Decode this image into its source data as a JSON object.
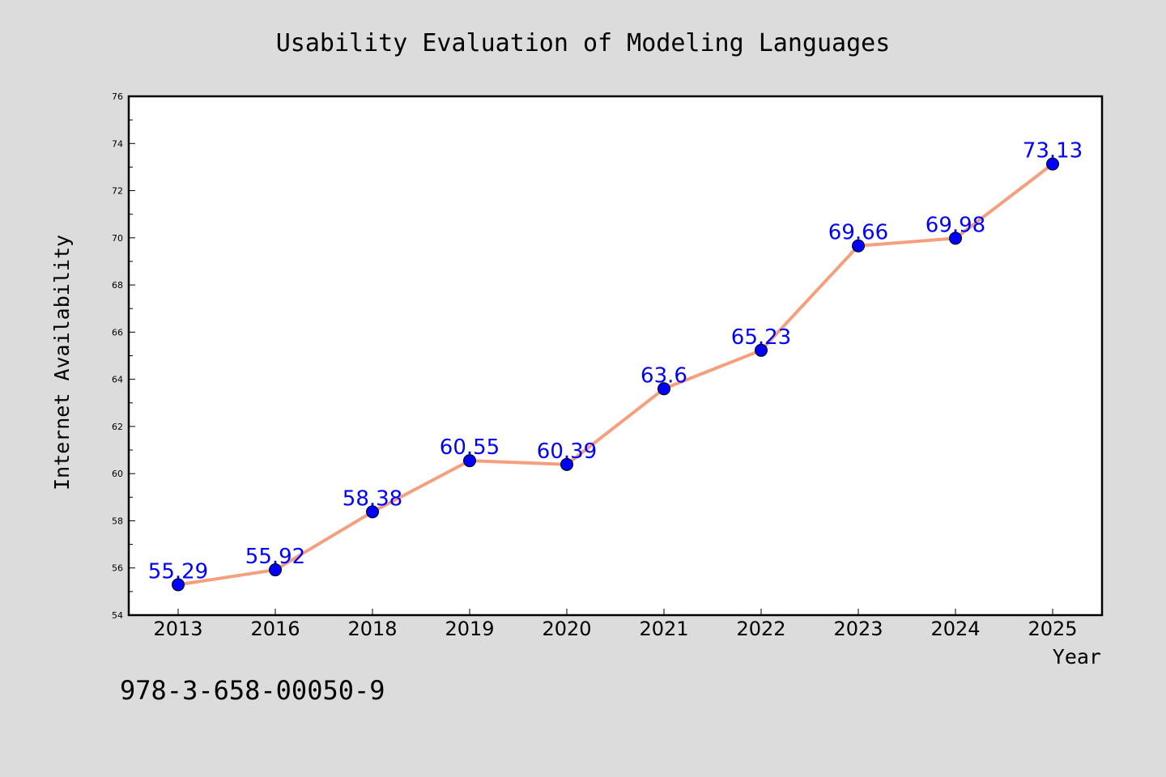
{
  "chart_data": {
    "type": "line",
    "title": "Usability Evaluation of Modeling Languages",
    "xlabel": "Year",
    "ylabel": "Internet Availability",
    "categories": [
      "2013",
      "2016",
      "2018",
      "2019",
      "2020",
      "2021",
      "2022",
      "2023",
      "2024",
      "2025"
    ],
    "series": [
      {
        "values": [
          55.29,
          55.92,
          58.38,
          60.55,
          60.39,
          63.6,
          65.23,
          69.66,
          69.98,
          73.13
        ],
        "data_labels": [
          "55.29",
          "55.92",
          "58.38",
          "60.55",
          "60.39",
          "63.6",
          "65.23",
          "69.66",
          "69.98",
          "73.13"
        ],
        "line_color": "#f4a07f",
        "marker_color": "#0000ff",
        "label_color": "#0000ff"
      }
    ],
    "ylim": [
      54,
      76
    ],
    "yticks": [
      54,
      56,
      58,
      60,
      62,
      64,
      66,
      68,
      70,
      72,
      74,
      76
    ],
    "ytick_labels": [
      "54",
      "56",
      "58",
      "60",
      "62",
      "64",
      "66",
      "68",
      "70",
      "72",
      "74",
      "76"
    ],
    "grid": false,
    "legend": "none",
    "background_color": "#dcdcdc",
    "plot_background_color": "#ffffff"
  },
  "footnote": "978-3-658-00050-9"
}
